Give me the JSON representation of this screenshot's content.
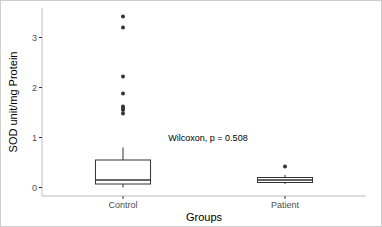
{
  "chart_data": {
    "type": "box",
    "x_label": "Groups",
    "y_label": "SOD unit/mg Protein",
    "categories": [
      "Control",
      "Patient"
    ],
    "boxes": [
      {
        "min": 0.0,
        "q1": 0.07,
        "median": 0.15,
        "q3": 0.55,
        "max": 0.8,
        "outliers": [
          3.42,
          3.2,
          2.22,
          1.88,
          1.62,
          1.58,
          1.55,
          1.48
        ]
      },
      {
        "min": 0.07,
        "q1": 0.1,
        "median": 0.15,
        "q3": 0.2,
        "max": 0.25,
        "outliers": [
          0.42
        ]
      }
    ],
    "annotations": [
      {
        "text": "Wilcoxon, p = 0.508",
        "y": 1.0
      }
    ],
    "ylim": [
      -0.17,
      3.59
    ],
    "yticks": [
      0,
      1,
      2,
      3
    ],
    "color": "#ffffff",
    "grid": false
  }
}
